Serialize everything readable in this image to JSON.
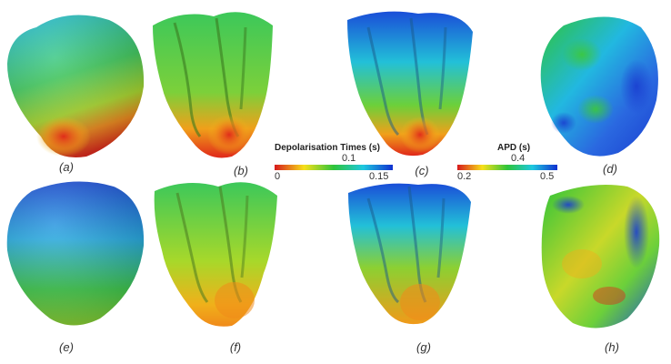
{
  "panels": [
    {
      "id": "a",
      "label": "(a)"
    },
    {
      "id": "b",
      "label": "(b)"
    },
    {
      "id": "c",
      "label": "(c)"
    },
    {
      "id": "d",
      "label": "(d)"
    },
    {
      "id": "e",
      "label": "(e)"
    },
    {
      "id": "f",
      "label": "(f)"
    },
    {
      "id": "g",
      "label": "(g)"
    },
    {
      "id": "h",
      "label": "(h)"
    }
  ],
  "colorbars": {
    "depolarisation": {
      "title": "Depolarisation Times (s)",
      "min": "0",
      "mid": "0.1",
      "max": "0.15",
      "colors": [
        "#d7191c",
        "#f7e01a",
        "#2ec43a",
        "#1ec8e0",
        "#1030d0"
      ]
    },
    "apd": {
      "title": "APD (s)",
      "min": "0.2",
      "mid": "0.4",
      "max": "0.5",
      "colors": [
        "#d7191c",
        "#f7e01a",
        "#2ec43a",
        "#1ec8e0",
        "#1030d0"
      ]
    }
  },
  "colors": {
    "red": "#e0281a",
    "orange": "#f08a1a",
    "yellow": "#e8d81a",
    "green": "#4cc83a",
    "cyan": "#22c0d8",
    "blue": "#1a3ed0"
  }
}
